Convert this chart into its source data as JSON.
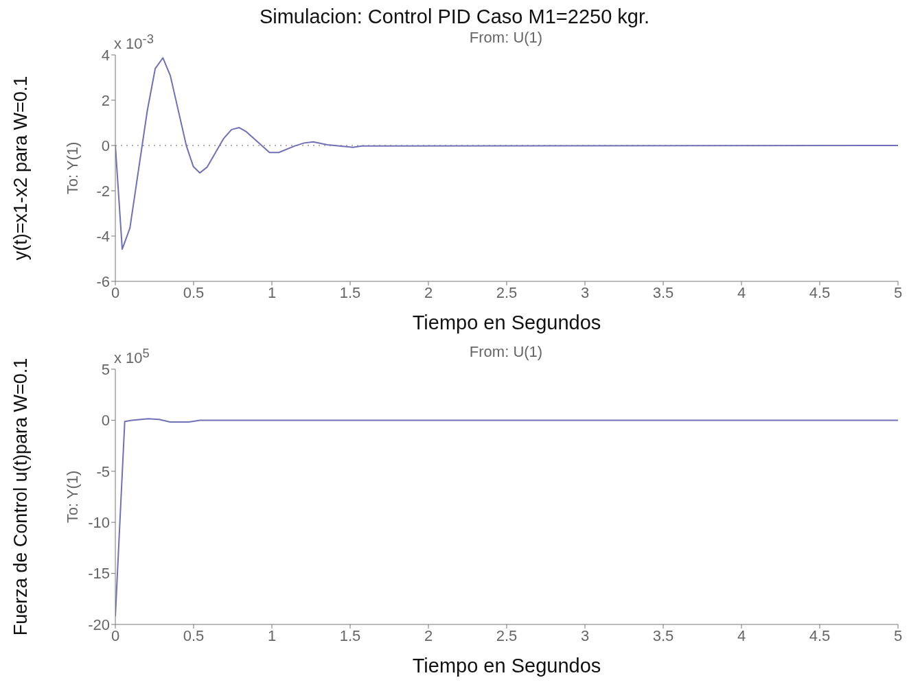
{
  "chart_data": [
    {
      "type": "line",
      "title": "Simulacion: Control PID Caso M1=2250 kgr.",
      "subtitle": "From: U(1)",
      "xlabel": "Tiempo en Segundos",
      "ylabel": "y(t)=x1-x2 para W=0.1",
      "annotations": [
        "x 10$^{-3}$",
        "To: Y(1)"
      ],
      "xlim": [
        0,
        5
      ],
      "xticks": [
        0,
        0.5,
        1,
        1.5,
        2,
        2.5,
        3,
        3.5,
        4,
        4.5,
        5
      ],
      "ylim": [
        -6,
        4
      ],
      "yticks": [
        -6,
        -4,
        -2,
        0,
        2,
        4
      ],
      "marker": "none",
      "line_style": "solid",
      "ref_lines": [
        {
          "axis": "y",
          "value": 0,
          "color": "#999999",
          "line_style": "dotted"
        }
      ],
      "series": [
        {
          "color": "#7070b8",
          "x": [
            0,
            0.044,
            0.093,
            0.204,
            0.255,
            0.304,
            0.351,
            0.454,
            0.498,
            0.54,
            0.587,
            0.69,
            0.742,
            0.79,
            0.838,
            0.985,
            1.044,
            1.147,
            1.206,
            1.265,
            1.354,
            1.516,
            1.575,
            5
          ],
          "values": [
            0,
            -4.58,
            -3.65,
            1.53,
            3.4,
            3.87,
            3.09,
            -0.02,
            -0.93,
            -1.21,
            -0.95,
            0.29,
            0.7,
            0.79,
            0.6,
            -0.31,
            -0.31,
            -0.02,
            0.11,
            0.16,
            0.03,
            -0.08,
            -0.02,
            0
          ]
        }
      ]
    },
    {
      "type": "line",
      "subtitle": "From: U(1)",
      "xlabel": "Tiempo en Segundos",
      "ylabel": "Fuerza de Control u(t)para W=0.1",
      "annotations": [
        "x 10$^{5}$",
        "To: Y(1)"
      ],
      "xlim": [
        0,
        5
      ],
      "xticks": [
        0,
        0.5,
        1,
        1.5,
        2,
        2.5,
        3,
        3.5,
        4,
        4.5,
        5
      ],
      "ylim": [
        -20,
        5
      ],
      "yticks": [
        -20,
        -15,
        -10,
        -5,
        0,
        5
      ],
      "marker": "none",
      "line_style": "solid",
      "series": [
        {
          "color": "#7070b8",
          "x": [
            0,
            0.06,
            0.106,
            0.21,
            0.28,
            0.35,
            0.47,
            0.54,
            5
          ],
          "values": [
            -19.2,
            -0.13,
            0,
            0.15,
            0.08,
            -0.18,
            -0.18,
            0,
            0
          ]
        }
      ]
    }
  ]
}
